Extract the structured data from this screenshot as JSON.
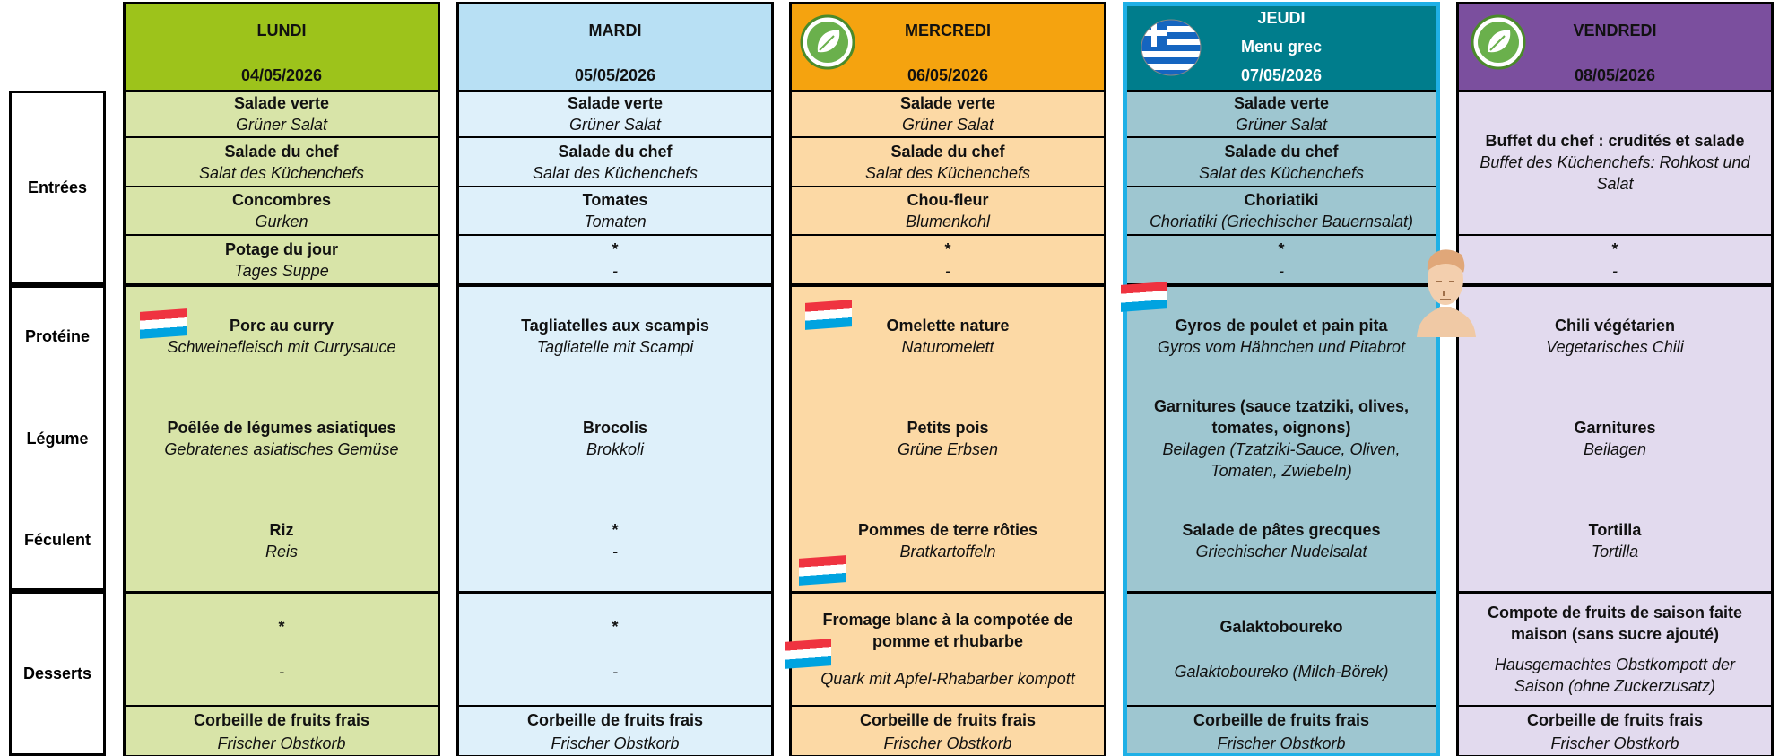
{
  "row_labels": [
    "Entrées",
    "Protéine",
    "Légume",
    "Féculent",
    "Desserts"
  ],
  "days": [
    {
      "name": "LUNDI",
      "date": "04/05/2026",
      "header_color": "#9dc31b",
      "body_color": "#d8e4a8",
      "text_color": "#111",
      "starters": [
        {
          "fr": "Salade verte",
          "de": "Grüner Salat"
        },
        {
          "fr": "Salade du chef",
          "de": "Salat des Küchenchefs"
        },
        {
          "fr": "Concombres",
          "de": "Gurken"
        },
        {
          "fr": "Potage du jour",
          "de": "Tages Suppe"
        }
      ],
      "protein": {
        "fr": "Porc au curry",
        "de": "Schweinefleisch mit Currysauce"
      },
      "vegetable": {
        "fr": "Poêlée de légumes asiatiques",
        "de": "Gebratenes asiatisches Gemüse"
      },
      "starch": {
        "fr": "Riz",
        "de": "Reis"
      },
      "dessert": {
        "fr": "*",
        "de": "-"
      },
      "fruit": {
        "fr": "Corbeille de fruits frais",
        "de": "Frischer Obstkorb"
      }
    },
    {
      "name": "MARDI",
      "date": "05/05/2026",
      "header_color": "#b8e0f4",
      "body_color": "#def0fa",
      "text_color": "#111",
      "starters": [
        {
          "fr": "Salade verte",
          "de": "Grüner Salat"
        },
        {
          "fr": "Salade du chef",
          "de": "Salat des Küchenchefs"
        },
        {
          "fr": "Tomates",
          "de": "Tomaten"
        },
        {
          "fr": "*",
          "de": "-"
        }
      ],
      "protein": {
        "fr": "Tagliatelles aux scampis",
        "de": "Tagliatelle mit Scampi"
      },
      "vegetable": {
        "fr": "Brocolis",
        "de": "Brokkoli"
      },
      "starch": {
        "fr": "*",
        "de": "-"
      },
      "dessert": {
        "fr": "*",
        "de": "-"
      },
      "fruit": {
        "fr": "Corbeille de fruits frais",
        "de": "Frischer Obstkorb"
      }
    },
    {
      "name": "MERCREDI",
      "date": "06/05/2026",
      "header_color": "#f5a30f",
      "body_color": "#fcd9a5",
      "text_color": "#111",
      "starters": [
        {
          "fr": "Salade verte",
          "de": "Grüner Salat"
        },
        {
          "fr": "Salade du chef",
          "de": "Salat des Küchenchefs"
        },
        {
          "fr": "Chou-fleur",
          "de": "Blumenkohl"
        },
        {
          "fr": "*",
          "de": "-"
        }
      ],
      "protein": {
        "fr": "Omelette nature",
        "de": "Naturomelett"
      },
      "vegetable": {
        "fr": "Petits pois",
        "de": "Grüne Erbsen"
      },
      "starch": {
        "fr": "Pommes de terre rôties",
        "de": "Bratkartoffeln"
      },
      "dessert": {
        "fr": "Fromage blanc à la compotée de pomme et rhubarbe",
        "de": "Quark mit Apfel-Rhabarber kompott"
      },
      "fruit": {
        "fr": "Corbeille de fruits frais",
        "de": "Frischer Obstkorb"
      }
    },
    {
      "name": "JEUDI",
      "subtitle": "Menu grec",
      "date": "07/05/2026",
      "header_color": "#007d8c",
      "body_color": "#9ec6d0",
      "text_color": "#ffffff",
      "border_color": "#1fb0e6",
      "starters": [
        {
          "fr": "Salade verte",
          "de": "Grüner Salat"
        },
        {
          "fr": "Salade du chef",
          "de": "Salat des Küchenchefs"
        },
        {
          "fr": "Choriatiki",
          "de": "Choriatiki (Griechischer Bauernsalat)"
        },
        {
          "fr": "*",
          "de": "-"
        }
      ],
      "protein": {
        "fr": "Gyros de poulet et pain pita",
        "de": "Gyros vom Hähnchen und Pitabrot"
      },
      "vegetable": {
        "fr": "Garnitures (sauce tzatziki, olives, tomates, oignons)",
        "de": "Beilagen (Tzatziki-Sauce, Oliven, Tomaten, Zwiebeln)"
      },
      "starch": {
        "fr": "Salade de pâtes grecques",
        "de": "Griechischer Nudelsalat"
      },
      "dessert": {
        "fr": "Galaktoboureko",
        "de": "Galaktoboureko (Milch-Börek)"
      },
      "fruit": {
        "fr": "Corbeille de fruits frais",
        "de": "Frischer Obstkorb"
      }
    },
    {
      "name": "VENDREDI",
      "date": "08/05/2026",
      "header_color": "#7b4f9e",
      "body_color": "#e2daee",
      "text_color": "#111",
      "starters": [
        {
          "fr": "Buffet du chef : crudités et salade",
          "de": "Buffet des Küchenchefs: Rohkost und Salat"
        },
        {
          "fr": "*",
          "de": "-"
        }
      ],
      "protein": {
        "fr": "Chili végétarien",
        "de": "Vegetarisches Chili"
      },
      "vegetable": {
        "fr": "Garnitures",
        "de": "Beilagen"
      },
      "starch": {
        "fr": "Tortilla",
        "de": "Tortilla"
      },
      "dessert": {
        "fr": "Compote de fruits de saison faite maison (sans sucre ajouté)",
        "de": "Hausgemachtes Obstkompott der Saison (ohne Zuckerzusatz)"
      },
      "fruit": {
        "fr": "Corbeille de fruits frais",
        "de": "Frischer Obstkorb"
      }
    }
  ]
}
